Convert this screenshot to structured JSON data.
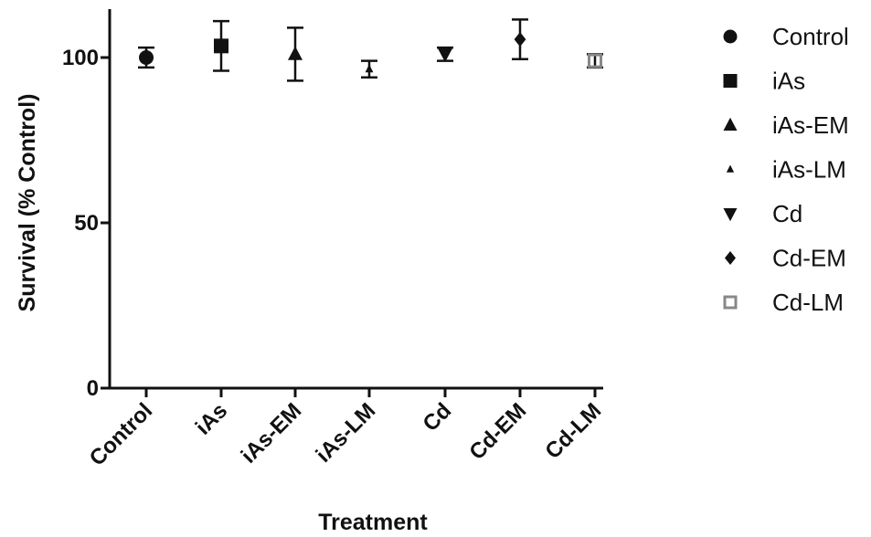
{
  "chart_data": {
    "type": "scatter",
    "title": "",
    "xlabel": "Treatment",
    "ylabel": "Survival (% Control)",
    "ylim": [
      0,
      115
    ],
    "yticks": [
      "0",
      "50",
      "100"
    ],
    "grid": false,
    "legend_position": "right",
    "categories": [
      "Control",
      "iAs",
      "iAs-EM",
      "iAs-LM",
      "Cd",
      "Cd-EM",
      "Cd-LM"
    ],
    "series": [
      {
        "name": "Control",
        "marker": "circle",
        "color": "#111111",
        "mean": 100,
        "error": 3
      },
      {
        "name": "iAs",
        "marker": "square",
        "color": "#111111",
        "mean": 103.5,
        "error": 7.5
      },
      {
        "name": "iAs-EM",
        "marker": "triangle-up",
        "color": "#111111",
        "mean": 101,
        "error": 8
      },
      {
        "name": "iAs-LM",
        "marker": "triangle-up-small",
        "color": "#111111",
        "mean": 96.5,
        "error": 2.5
      },
      {
        "name": "Cd",
        "marker": "triangle-down",
        "color": "#111111",
        "mean": 101,
        "error": 2
      },
      {
        "name": "Cd-EM",
        "marker": "diamond",
        "color": "#111111",
        "mean": 105.5,
        "error": 6
      },
      {
        "name": "Cd-LM",
        "marker": "square-open",
        "color": "#888888",
        "mean": 99,
        "error": 2
      }
    ]
  }
}
